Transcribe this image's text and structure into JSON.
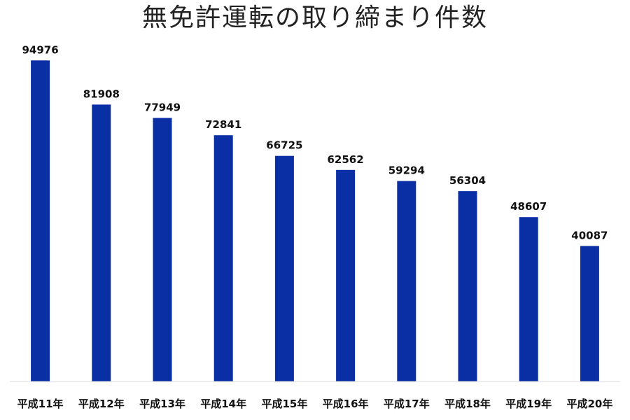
{
  "chart_data": {
    "type": "bar",
    "title": "無免許運転の取り締まり件数",
    "categories": [
      "平成11年",
      "平成12年",
      "平成13年",
      "平成14年",
      "平成15年",
      "平成16年",
      "平成17年",
      "平成18年",
      "平成19年",
      "平成20年"
    ],
    "values": [
      94976,
      81908,
      77949,
      72841,
      66725,
      62562,
      59294,
      56304,
      48607,
      40087
    ],
    "ylim": [
      0,
      100000
    ],
    "grid": false,
    "legend": "none",
    "data_labels": true,
    "bar_color": "#0a2ea4"
  }
}
